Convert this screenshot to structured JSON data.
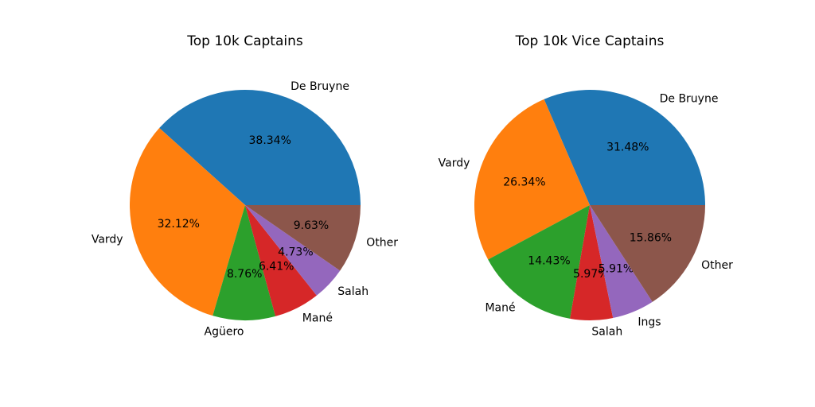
{
  "chart_data": [
    {
      "type": "pie",
      "title": "Top 10k Captains",
      "categories": [
        "De Bruyne",
        "Vardy",
        "Agüero",
        "Mané",
        "Salah",
        "Other"
      ],
      "values": [
        38.34,
        32.12,
        8.76,
        6.41,
        4.73,
        9.63
      ],
      "value_labels": [
        "38.34%",
        "32.12%",
        "8.76%",
        "6.41%",
        "4.73%",
        "9.63%"
      ],
      "colors": [
        "#1f77b4",
        "#ff7f0e",
        "#2ca02c",
        "#d62728",
        "#9467bd",
        "#8c564b"
      ],
      "start_angle_deg": 0,
      "direction": "counterclockwise"
    },
    {
      "type": "pie",
      "title": "Top 10k Vice Captains",
      "categories": [
        "De Bruyne",
        "Vardy",
        "Mané",
        "Salah",
        "Ings",
        "Other"
      ],
      "values": [
        31.48,
        26.34,
        14.43,
        5.97,
        5.91,
        15.86
      ],
      "value_labels": [
        "31.48%",
        "26.34%",
        "14.43%",
        "5.97%",
        "5.91%",
        "15.86%"
      ],
      "colors": [
        "#1f77b4",
        "#ff7f0e",
        "#2ca02c",
        "#d62728",
        "#9467bd",
        "#8c564b"
      ],
      "start_angle_deg": 0,
      "direction": "counterclockwise"
    }
  ]
}
